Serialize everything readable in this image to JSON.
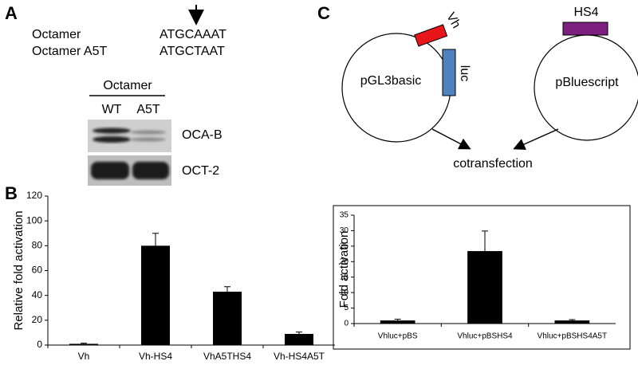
{
  "panel_a": {
    "label": "A",
    "sequences": [
      {
        "name": "Octamer",
        "seq": "ATGCAAAT"
      },
      {
        "name": "Octamer A5T",
        "seq": "ATGCTAAT"
      }
    ],
    "blot": {
      "header": "Octamer",
      "lanes": [
        "WT",
        "A5T"
      ],
      "bands": [
        "OCA-B",
        "OCT-2"
      ]
    }
  },
  "panel_b": {
    "label": "B"
  },
  "panel_c": {
    "label": "C",
    "plasmids": [
      "pGL3basic",
      "pBluescript"
    ],
    "inserts": [
      "Vh",
      "luc",
      "HS4"
    ],
    "step": "cotransfection"
  },
  "chart_data": [
    {
      "type": "bar",
      "ylabel": "Relative fold activation",
      "categories": [
        "Vh",
        "Vh-HS4",
        "VhA5THS4",
        "Vh-HS4A5T"
      ],
      "values": [
        1,
        80,
        43,
        9
      ],
      "errors": [
        0.5,
        10,
        4,
        1.5
      ],
      "color": "#000000",
      "ylim": [
        0,
        120
      ],
      "yticks": [
        0,
        20,
        40,
        60,
        80,
        100,
        120
      ],
      "frame": false
    },
    {
      "type": "bar",
      "ylabel": "Fold activation",
      "categories": [
        "Vhluc+pBS",
        "Vhluc+pBSHS4",
        "Vhluc+pBSHS4A5T"
      ],
      "values": [
        1,
        23.4,
        1
      ],
      "errors": [
        0.4,
        6.5,
        0.3
      ],
      "color": "#000000",
      "ylim": [
        0,
        35
      ],
      "yticks": [
        0,
        5,
        10,
        15,
        20,
        25,
        30,
        35
      ],
      "frame": true
    }
  ]
}
